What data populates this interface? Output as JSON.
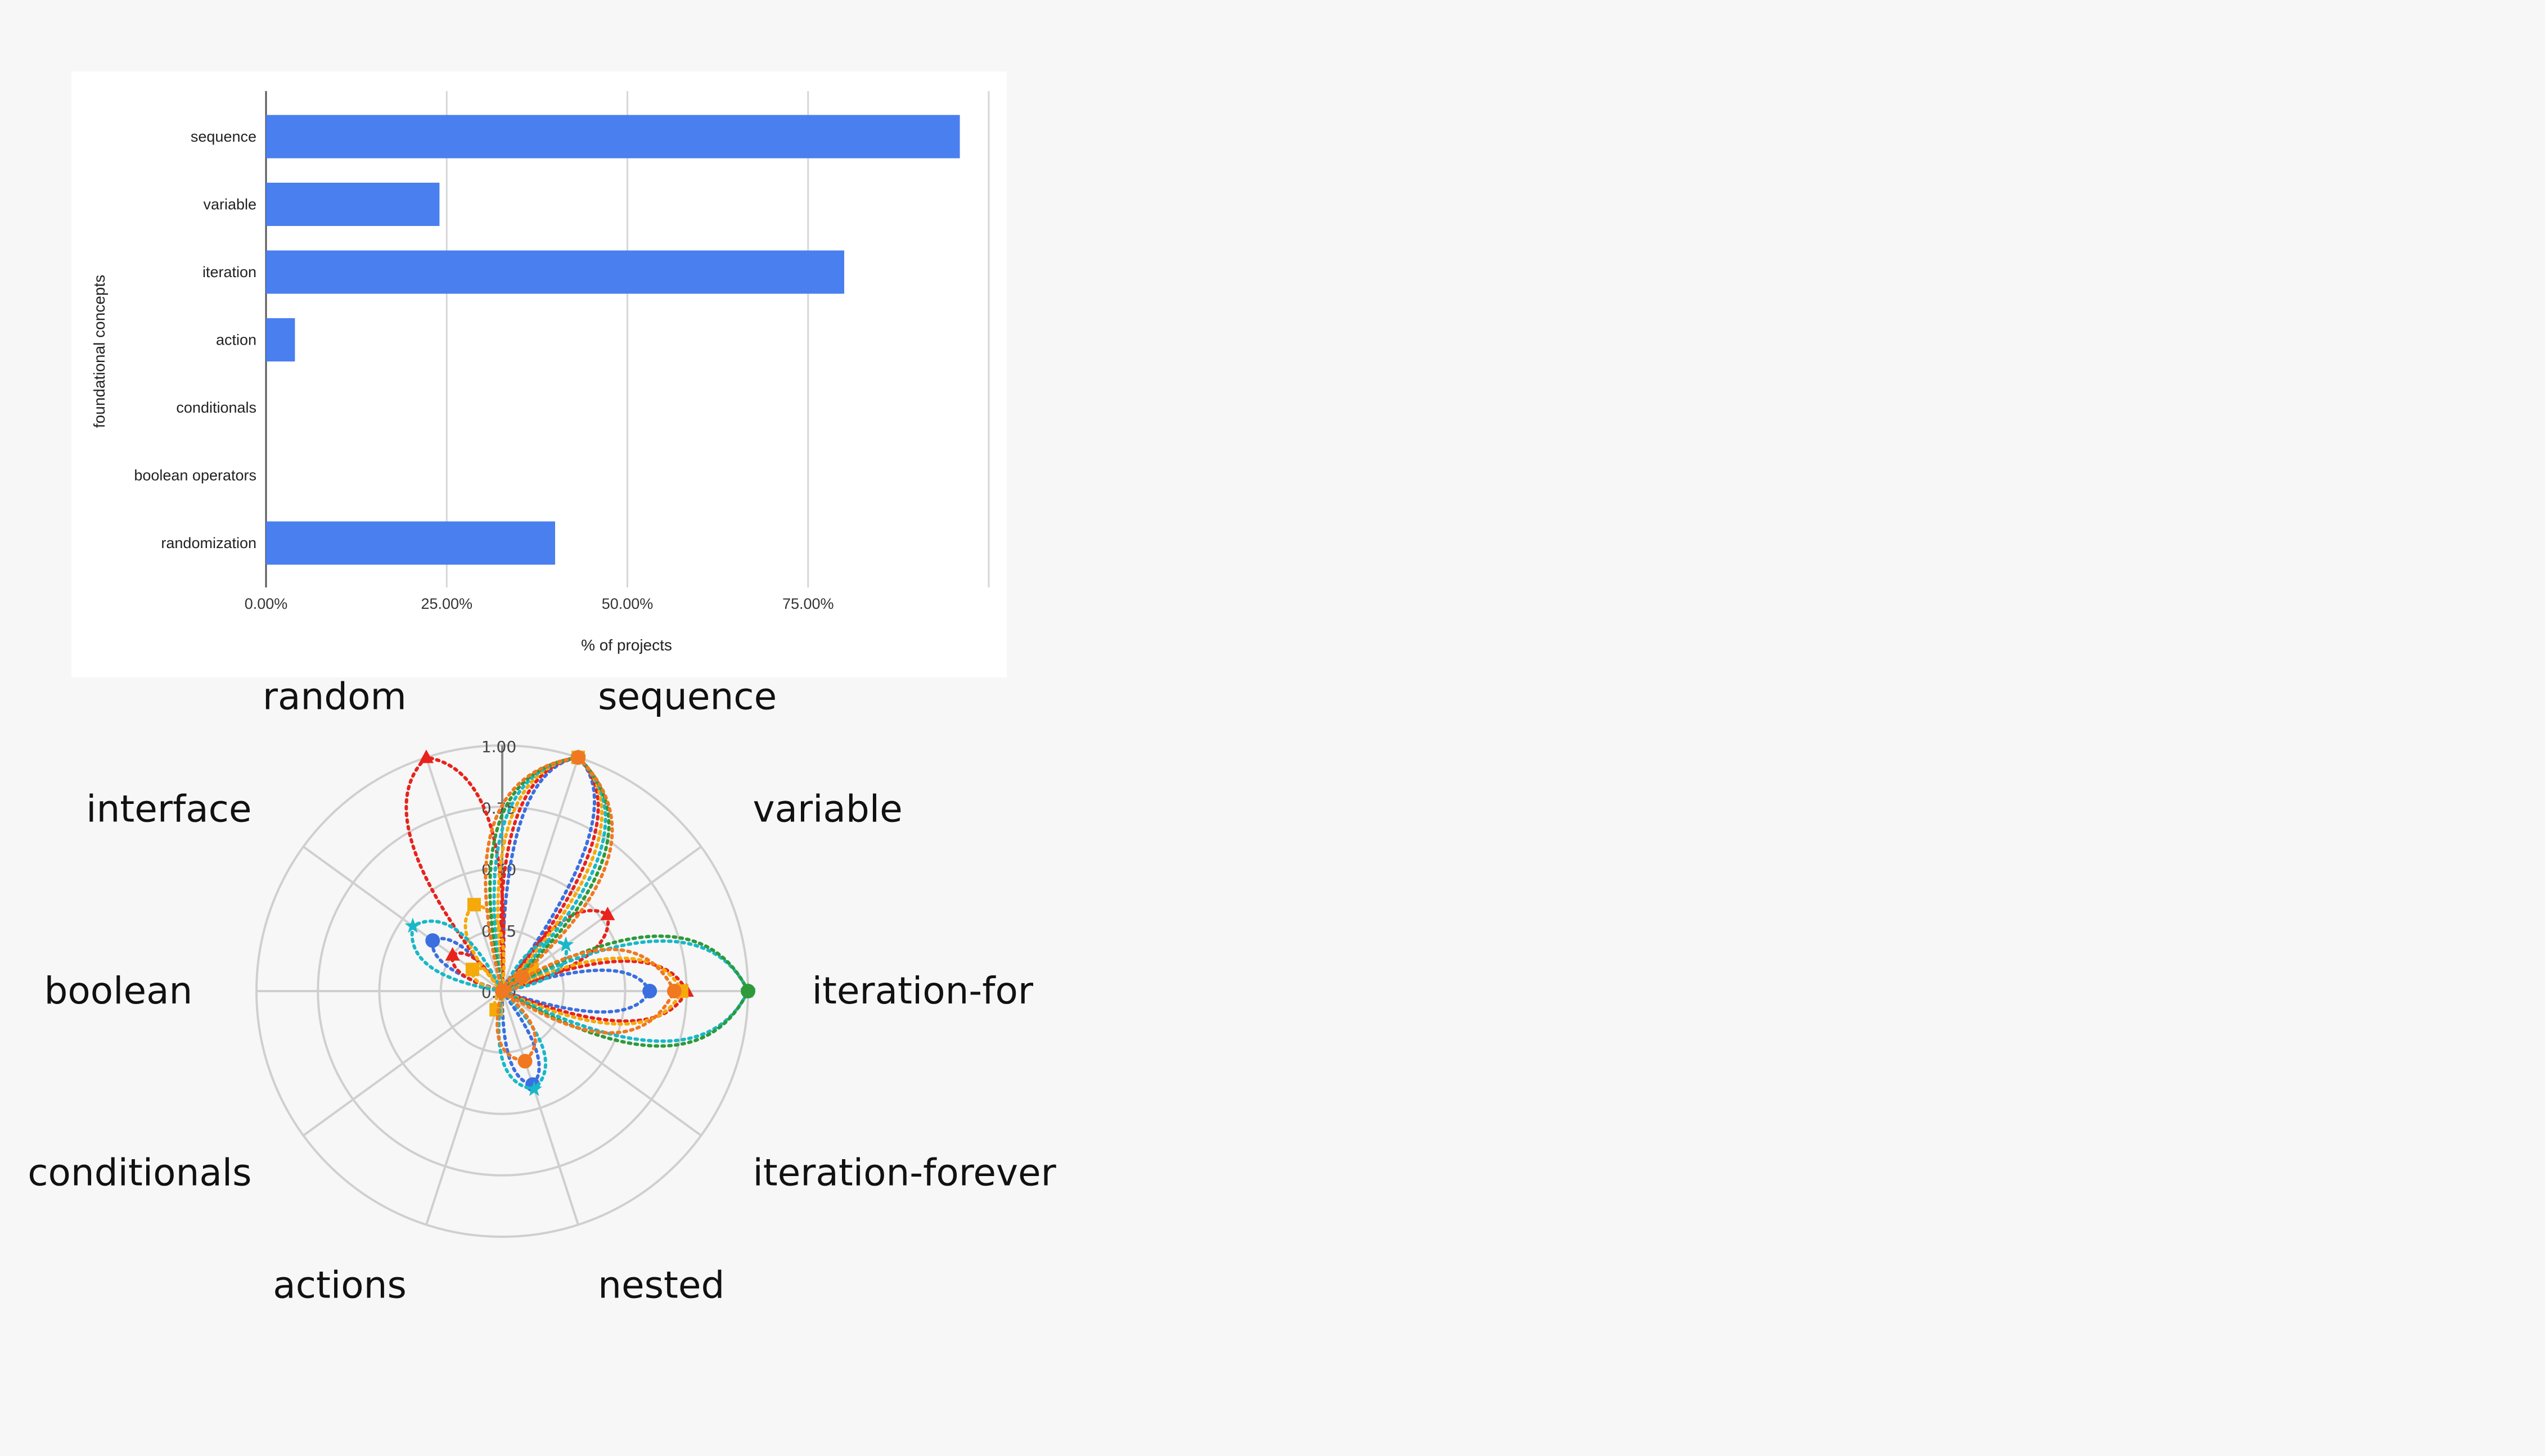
{
  "chart_data": [
    {
      "type": "bar",
      "orientation": "horizontal",
      "categories": [
        "sequence",
        "variable",
        "iteration",
        "action",
        "conditionals",
        "boolean operators",
        "randomization"
      ],
      "values": [
        96,
        24,
        80,
        4,
        0,
        0,
        40
      ],
      "xlabel": "% of projects",
      "ylabel": "foundational concepts",
      "xticks": [
        "0.00%",
        "25.00%",
        "50.00%",
        "75.00%"
      ],
      "xlim": [
        0,
        100
      ],
      "grid": "vertical",
      "colors": {
        "bar": "#4a7fef"
      }
    },
    {
      "type": "radar",
      "axes": [
        "sequence",
        "variable",
        "iteration-for",
        "iteration-forever",
        "nested",
        "actions",
        "conditionals",
        "boolean",
        "interface",
        "random"
      ],
      "radial_ticks": [
        "0.00",
        "0.25",
        "0.50",
        "0.75",
        "1.00"
      ],
      "rlim": [
        0,
        1
      ],
      "series": [
        {
          "values": [
            1.0,
            0.05,
            0.6,
            0.0,
            0.4,
            0.0,
            0.0,
            0.0,
            0.35,
            0.0
          ],
          "color": "#3b6fe0",
          "marker": "circle"
        },
        {
          "values": [
            1.0,
            0.53,
            0.75,
            0.0,
            0.0,
            0.0,
            0.0,
            0.0,
            0.25,
            1.0
          ],
          "color": "#e8231c",
          "marker": "triangle"
        },
        {
          "values": [
            1.0,
            0.15,
            0.73,
            0.0,
            0.0,
            0.08,
            0.0,
            0.0,
            0.15,
            0.37
          ],
          "color": "#f5a90a",
          "marker": "square"
        },
        {
          "values": [
            1.0,
            0.32,
            1.0,
            0.0,
            0.42,
            0.0,
            0.0,
            0.0,
            0.45,
            0.0
          ],
          "color": "#18b8c8",
          "marker": "star"
        },
        {
          "values": [
            1.0,
            0.0,
            1.0,
            0.0,
            0.0,
            0.0,
            0.0,
            0.0,
            0.0,
            0.0
          ],
          "color": "#2e9a3a",
          "marker": "circle"
        },
        {
          "values": [
            1.0,
            0.1,
            0.7,
            0.0,
            0.3,
            0.0,
            0.0,
            0.0,
            0.0,
            0.0
          ],
          "color": "#f07820",
          "marker": "circle"
        }
      ]
    }
  ]
}
